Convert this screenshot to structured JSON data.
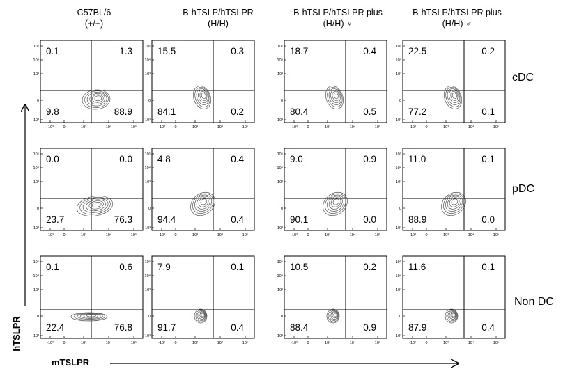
{
  "columns": [
    {
      "line1": "C57BL/6",
      "line2": "(+/+)"
    },
    {
      "line1": "B-hTSLP/hTSLPR",
      "line2": "(H/H)"
    },
    {
      "line1": "B-hTSLP/hTSLPR plus",
      "line2": "(H/H) ♀"
    },
    {
      "line1": "B-hTSLP/hTSLPR plus",
      "line2": "(H/H) ♂"
    }
  ],
  "rows": [
    "cDC",
    "pDC",
    "Non DC"
  ],
  "xlabel": "mTSLPR",
  "ylabel": "hTSLPR",
  "y_ticks": [
    "10⁵",
    "10⁴",
    "10³",
    "0",
    "-10³"
  ],
  "x_ticks": [
    "-10³",
    "0",
    "10³",
    "10⁴",
    "10⁵"
  ],
  "chart_data": {
    "type": "scatter",
    "subtype": "flow-cytometry-contour-quadrants",
    "xlabel": "mTSLPR",
    "ylabel": "hTSLPR",
    "quadrant_order": [
      "UL",
      "UR",
      "LL",
      "LR"
    ],
    "panels": [
      {
        "row": "cDC",
        "column": "C57BL/6 (+/+)",
        "UL": "0.1",
        "UR": "1.3",
        "LL": "9.8",
        "LR": "88.9"
      },
      {
        "row": "cDC",
        "column": "B-hTSLP/hTSLPR (H/H)",
        "UL": "15.5",
        "UR": "0.3",
        "LL": "84.1",
        "LR": "0.2"
      },
      {
        "row": "cDC",
        "column": "B-hTSLP/hTSLPR plus (H/H) ♀",
        "UL": "18.7",
        "UR": "0.4",
        "LL": "80.4",
        "LR": "0.5"
      },
      {
        "row": "cDC",
        "column": "B-hTSLP/hTSLPR plus (H/H) ♂",
        "UL": "22.5",
        "UR": "0.2",
        "LL": "77.2",
        "LR": "0.1"
      },
      {
        "row": "pDC",
        "column": "C57BL/6 (+/+)",
        "UL": "0.0",
        "UR": "0.0",
        "LL": "23.7",
        "LR": "76.3"
      },
      {
        "row": "pDC",
        "column": "B-hTSLP/hTSLPR (H/H)",
        "UL": "4.8",
        "UR": "0.4",
        "LL": "94.4",
        "LR": "0.4"
      },
      {
        "row": "pDC",
        "column": "B-hTSLP/hTSLPR plus (H/H) ♀",
        "UL": "9.0",
        "UR": "0.9",
        "LL": "90.1",
        "LR": "0.0"
      },
      {
        "row": "pDC",
        "column": "B-hTSLP/hTSLPR plus (H/H) ♂",
        "UL": "11.0",
        "UR": "0.1",
        "LL": "88.9",
        "LR": "0.0"
      },
      {
        "row": "Non DC",
        "column": "C57BL/6 (+/+)",
        "UL": "0.1",
        "UR": "0.6",
        "LL": "22.4",
        "LR": "76.8"
      },
      {
        "row": "Non DC",
        "column": "B-hTSLP/hTSLPR (H/H)",
        "UL": "7.9",
        "UR": "0.1",
        "LL": "91.7",
        "LR": "0.4"
      },
      {
        "row": "Non DC",
        "column": "B-hTSLP/hTSLPR plus (H/H) ♀",
        "UL": "10.5",
        "UR": "0.2",
        "LL": "88.4",
        "LR": "0.9"
      },
      {
        "row": "Non DC",
        "column": "B-hTSLP/hTSLPR plus (H/H) ♂",
        "UL": "11.6",
        "UR": "0.1",
        "LL": "87.9",
        "LR": "0.4"
      }
    ]
  }
}
